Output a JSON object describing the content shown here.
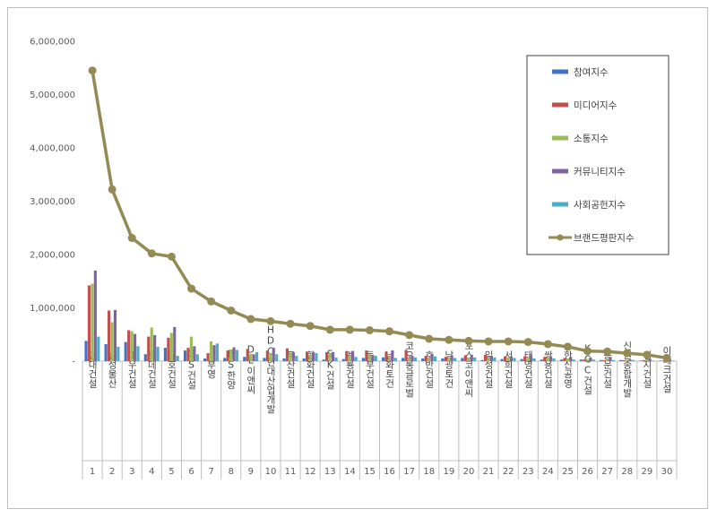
{
  "chart_data": {
    "type": "bar",
    "categories": [
      "현대건설",
      "삼성물산",
      "대우건설",
      "롯데건설",
      "금호건설",
      "GS건설",
      "부영",
      "BS한양",
      "DL이앤씨",
      "HDC현대산업개발",
      "두산건설",
      "한화건설",
      "SK건설",
      "계룡건설",
      "동부건설",
      "남화토건",
      "코오롱글로벌",
      "호반건설",
      "남광토건",
      "포스코이앤씨",
      "일성건설",
      "서희건설",
      "태영건설",
      "쌍용건설",
      "한신공영",
      "KCC건설",
      "동문건설",
      "신원종합개발",
      "성지건설",
      "이테크건설"
    ],
    "ranks": [
      "1",
      "2",
      "3",
      "4",
      "5",
      "6",
      "7",
      "8",
      "9",
      "10",
      "11",
      "12",
      "13",
      "14",
      "15",
      "16",
      "17",
      "18",
      "19",
      "20",
      "21",
      "22",
      "23",
      "24",
      "25",
      "26",
      "27",
      "28",
      "29",
      "30"
    ],
    "series": [
      {
        "name": "참여지수",
        "color": "#4472c4",
        "kind": "bar",
        "values": [
          380000,
          320000,
          360000,
          130000,
          250000,
          200000,
          50000,
          60000,
          80000,
          60000,
          50000,
          50000,
          30000,
          40000,
          60000,
          70000,
          60000,
          50000,
          50000,
          60000,
          20000,
          40000,
          40000,
          30000,
          30000,
          30000,
          20000,
          20000,
          10000,
          10000
        ]
      },
      {
        "name": "미디어지수",
        "color": "#c0504d",
        "kind": "bar",
        "values": [
          1420000,
          950000,
          580000,
          460000,
          440000,
          250000,
          150000,
          200000,
          230000,
          200000,
          240000,
          180000,
          170000,
          190000,
          200000,
          180000,
          210000,
          100000,
          80000,
          110000,
          120000,
          90000,
          90000,
          80000,
          60000,
          30000,
          20000,
          20000,
          20000,
          10000
        ]
      },
      {
        "name": "소통지수",
        "color": "#9bbb59",
        "kind": "bar",
        "values": [
          1450000,
          730000,
          560000,
          630000,
          530000,
          460000,
          370000,
          220000,
          140000,
          150000,
          160000,
          120000,
          150000,
          100000,
          130000,
          80000,
          60000,
          70000,
          70000,
          60000,
          60000,
          70000,
          60000,
          70000,
          50000,
          40000,
          30000,
          20000,
          30000,
          20000
        ]
      },
      {
        "name": "커뮤니티지수",
        "color": "#8064a2",
        "kind": "bar",
        "values": [
          1700000,
          960000,
          510000,
          490000,
          640000,
          280000,
          300000,
          260000,
          130000,
          250000,
          170000,
          170000,
          170000,
          180000,
          100000,
          200000,
          100000,
          140000,
          110000,
          120000,
          100000,
          90000,
          110000,
          90000,
          80000,
          70000,
          80000,
          30000,
          40000,
          50000
        ]
      },
      {
        "name": "사회공헌지수",
        "color": "#4bacc6",
        "kind": "bar",
        "values": [
          460000,
          270000,
          280000,
          270000,
          100000,
          130000,
          330000,
          210000,
          170000,
          130000,
          100000,
          150000,
          70000,
          80000,
          100000,
          60000,
          70000,
          90000,
          60000,
          70000,
          70000,
          60000,
          50000,
          50000,
          30000,
          30000,
          20000,
          20000,
          10000,
          10000
        ]
      },
      {
        "name": "브랜드평판지수",
        "color": "#948a54",
        "kind": "line",
        "values": [
          5450000,
          3220000,
          2310000,
          2020000,
          1960000,
          1360000,
          1120000,
          950000,
          790000,
          750000,
          700000,
          660000,
          590000,
          590000,
          580000,
          560000,
          490000,
          420000,
          400000,
          380000,
          370000,
          370000,
          360000,
          320000,
          270000,
          190000,
          180000,
          150000,
          120000,
          60000
        ]
      }
    ],
    "yticks": [
      "-",
      "1,000,000",
      "2,000,000",
      "3,000,000",
      "4,000,000",
      "5,000,000",
      "6,000,000"
    ],
    "ylim": [
      0,
      6000000
    ],
    "legend_position": "top-right",
    "grid": false
  }
}
